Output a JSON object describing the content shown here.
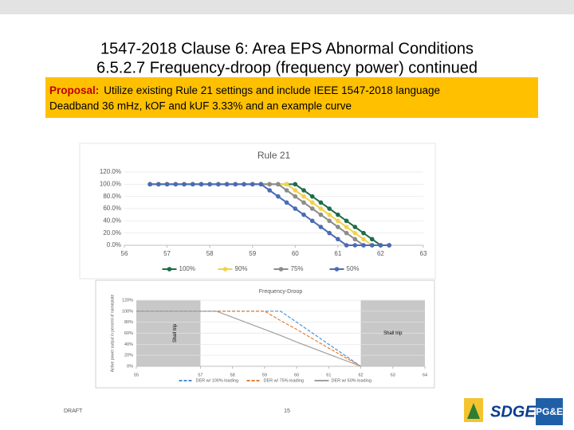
{
  "header": {
    "title_line1": "1547-2018 Clause 6:  Area EPS Abnormal Conditions",
    "title_line2": "6.5.2.7  Frequency-droop (frequency power) continued"
  },
  "proposal": {
    "label": "Proposal:",
    "text": "Utilize existing Rule 21 settings and include IEEE 1547-2018 language",
    "line2": "Deadband 36 mHz, kOF and kUF 3.33% and an example curve"
  },
  "chart_data": [
    {
      "type": "line",
      "title": "Rule 21",
      "markers": true,
      "grid": true,
      "x": [
        56.6,
        56.8,
        57.0,
        57.2,
        57.4,
        57.6,
        57.8,
        58.0,
        58.2,
        58.4,
        58.6,
        58.8,
        59.0,
        59.2,
        59.4,
        59.6,
        59.8,
        60.0,
        60.2,
        60.4,
        60.6,
        60.8,
        61.0,
        61.2,
        61.4,
        61.6,
        61.8,
        62.0,
        62.2
      ],
      "series": [
        {
          "name": "100%",
          "color": "#1e6b4a",
          "values": [
            100,
            100,
            100,
            100,
            100,
            100,
            100,
            100,
            100,
            100,
            100,
            100,
            100,
            100,
            100,
            100,
            100,
            100,
            90,
            80,
            70,
            60,
            50,
            40,
            30,
            20,
            10,
            0,
            0
          ]
        },
        {
          "name": "90%",
          "color": "#f2d24b",
          "values": [
            100,
            100,
            100,
            100,
            100,
            100,
            100,
            100,
            100,
            100,
            100,
            100,
            100,
            100,
            100,
            100,
            100,
            90,
            80,
            70,
            60,
            50,
            40,
            30,
            20,
            10,
            0,
            0,
            0
          ]
        },
        {
          "name": "75%",
          "color": "#8c8c8c",
          "values": [
            100,
            100,
            100,
            100,
            100,
            100,
            100,
            100,
            100,
            100,
            100,
            100,
            100,
            100,
            100,
            100,
            90,
            80,
            70,
            60,
            50,
            40,
            30,
            20,
            10,
            0,
            0,
            0,
            0
          ]
        },
        {
          "name": "50%",
          "color": "#4a6bb5",
          "values": [
            100,
            100,
            100,
            100,
            100,
            100,
            100,
            100,
            100,
            100,
            100,
            100,
            100,
            100,
            90,
            80,
            70,
            60,
            50,
            40,
            30,
            20,
            10,
            0,
            0,
            0,
            0,
            0,
            0
          ]
        }
      ],
      "xlim": [
        56,
        63
      ],
      "xticks": [
        56,
        57,
        58,
        59,
        60,
        61,
        62,
        63
      ],
      "ylim": [
        0,
        120
      ],
      "yticks": [
        {
          "value": 0,
          "label": "0.0%"
        },
        {
          "value": 20,
          "label": "20.0%"
        },
        {
          "value": 40,
          "label": "40.0%"
        },
        {
          "value": 60,
          "label": "60.0%"
        },
        {
          "value": 80,
          "label": "80.0%"
        },
        {
          "value": 100,
          "label": "100.0%"
        },
        {
          "value": 120,
          "label": "120.0%"
        }
      ]
    },
    {
      "type": "line",
      "title": "Frequency-Droop",
      "markers": false,
      "grid": true,
      "y_label": "Active power output in percent of nameplate",
      "shaded_regions": [
        [
          55,
          57
        ],
        [
          62,
          64
        ]
      ],
      "annotations": [
        "Shall trip",
        "Shall trip"
      ],
      "x": [
        55,
        57,
        57.5,
        58,
        59,
        59.5,
        60,
        61,
        62
      ],
      "series": [
        {
          "name": "DER w/ 100% loading",
          "color": "#4a90d9",
          "dash": true,
          "values": [
            100,
            100,
            100,
            100,
            100,
            100,
            80,
            40,
            0
          ]
        },
        {
          "name": "DER w/ 75% loading",
          "color": "#e97c30",
          "dash": true,
          "values": [
            100,
            100,
            100,
            100,
            100,
            83,
            67,
            33,
            0
          ]
        },
        {
          "name": "DER w/ 50% loading",
          "color": "#a0a0a0",
          "dash": false,
          "values": [
            100,
            100,
            100,
            89,
            67,
            56,
            44,
            22,
            0
          ]
        }
      ],
      "xlim": [
        55,
        64
      ],
      "xticks": [
        55,
        57,
        58,
        59,
        60,
        61,
        62,
        63,
        64
      ],
      "ylim": [
        0,
        120
      ],
      "yticks": [
        {
          "value": 0,
          "label": "0%"
        },
        {
          "value": 20,
          "label": "20%"
        },
        {
          "value": 40,
          "label": "40%"
        },
        {
          "value": 60,
          "label": "60%"
        },
        {
          "value": 80,
          "label": "80%"
        },
        {
          "value": 100,
          "label": "100%"
        },
        {
          "value": 120,
          "label": "120%"
        }
      ]
    }
  ],
  "footer": {
    "draft": "DRAFT",
    "page": "15",
    "logo1": "SDGE",
    "logo2": "PG&E"
  }
}
